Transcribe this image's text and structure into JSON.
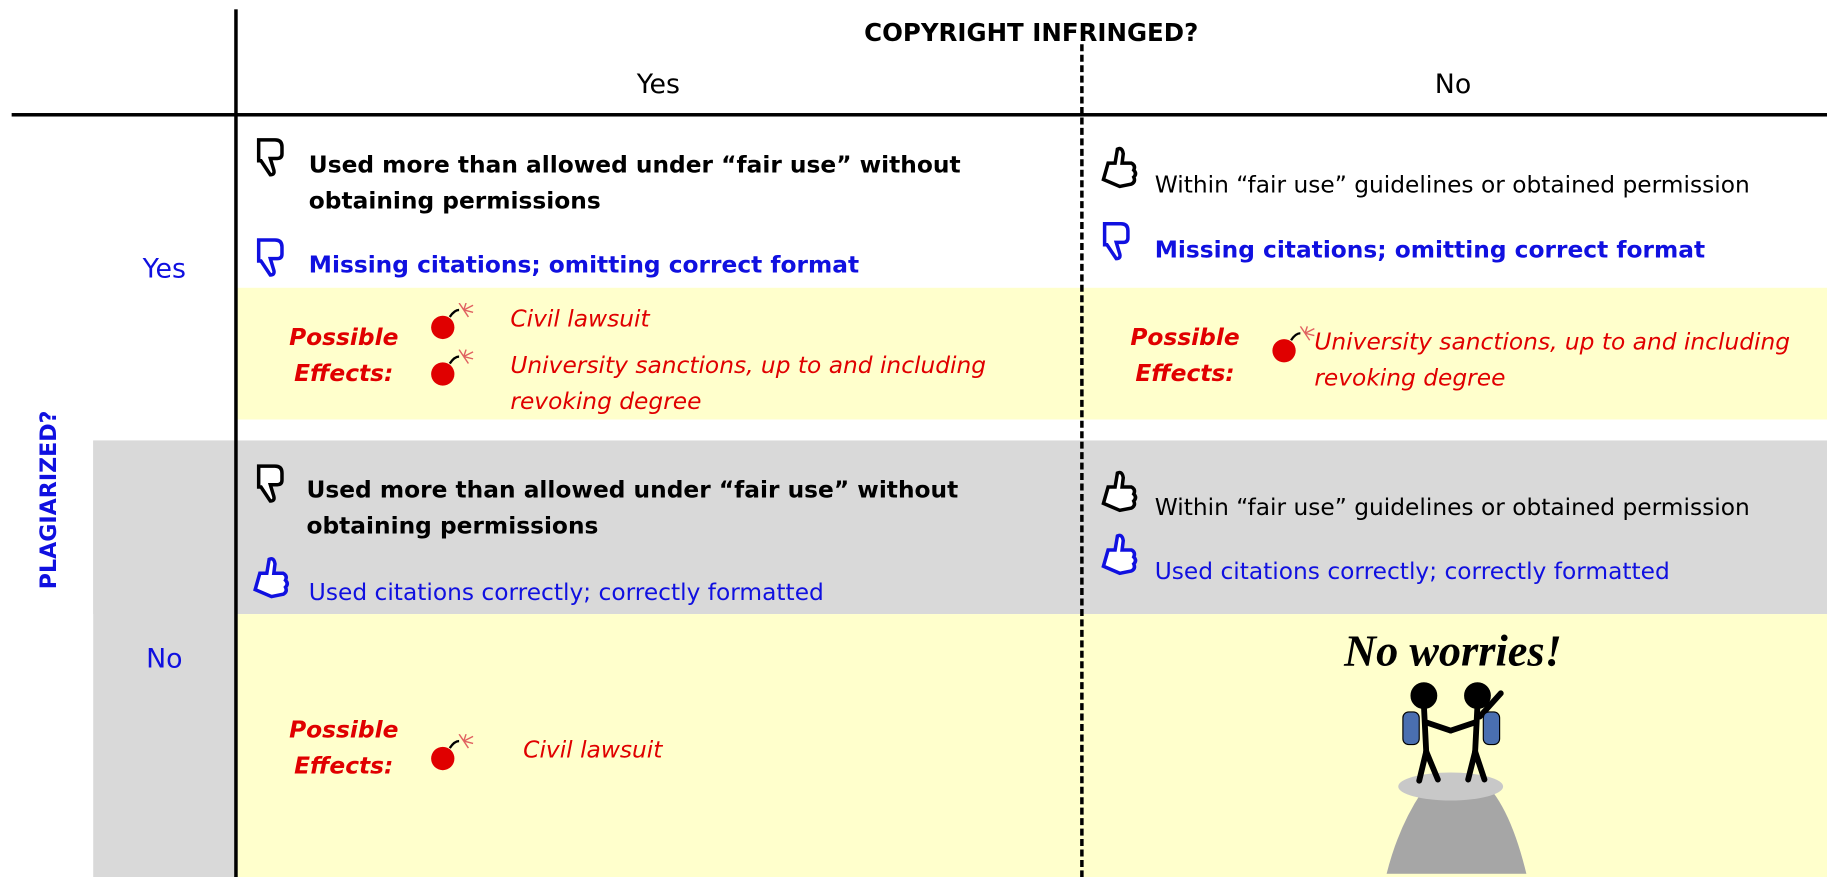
{
  "header": {
    "columns_title": "COPYRIGHT INFRINGED?",
    "rows_title": "PLAGIARIZED?"
  },
  "columns": [
    "Yes",
    "No"
  ],
  "rows": [
    "Yes",
    "No"
  ],
  "cells": [
    [
      {
        "copyright": "Used more than allowed under “fair use” without obtaining permissions",
        "citation": "Missing citations; omitting correct format",
        "effects_label": "Possible Effects:",
        "effects": [
          "Civil lawsuit",
          "University sanctions, up to and including revoking degree"
        ]
      },
      {
        "copyright": "Within “fair use” guidelines or obtained permission",
        "citation": "Missing citations; omitting correct format",
        "effects_label": "Possible Effects:",
        "effects": [
          "University sanctions, up to and including revoking degree"
        ]
      }
    ],
    [
      {
        "copyright": "Used more than allowed under “fair use” without obtaining permissions",
        "citation": "Used citations correctly; correctly formatted",
        "effects_label": "Possible Effects:",
        "effects": [
          "Civil lawsuit"
        ]
      },
      {
        "copyright": "Within “fair use” guidelines or obtained permission",
        "citation": "Used citations correctly; correctly formatted",
        "note": "No worries!"
      }
    ]
  ]
}
